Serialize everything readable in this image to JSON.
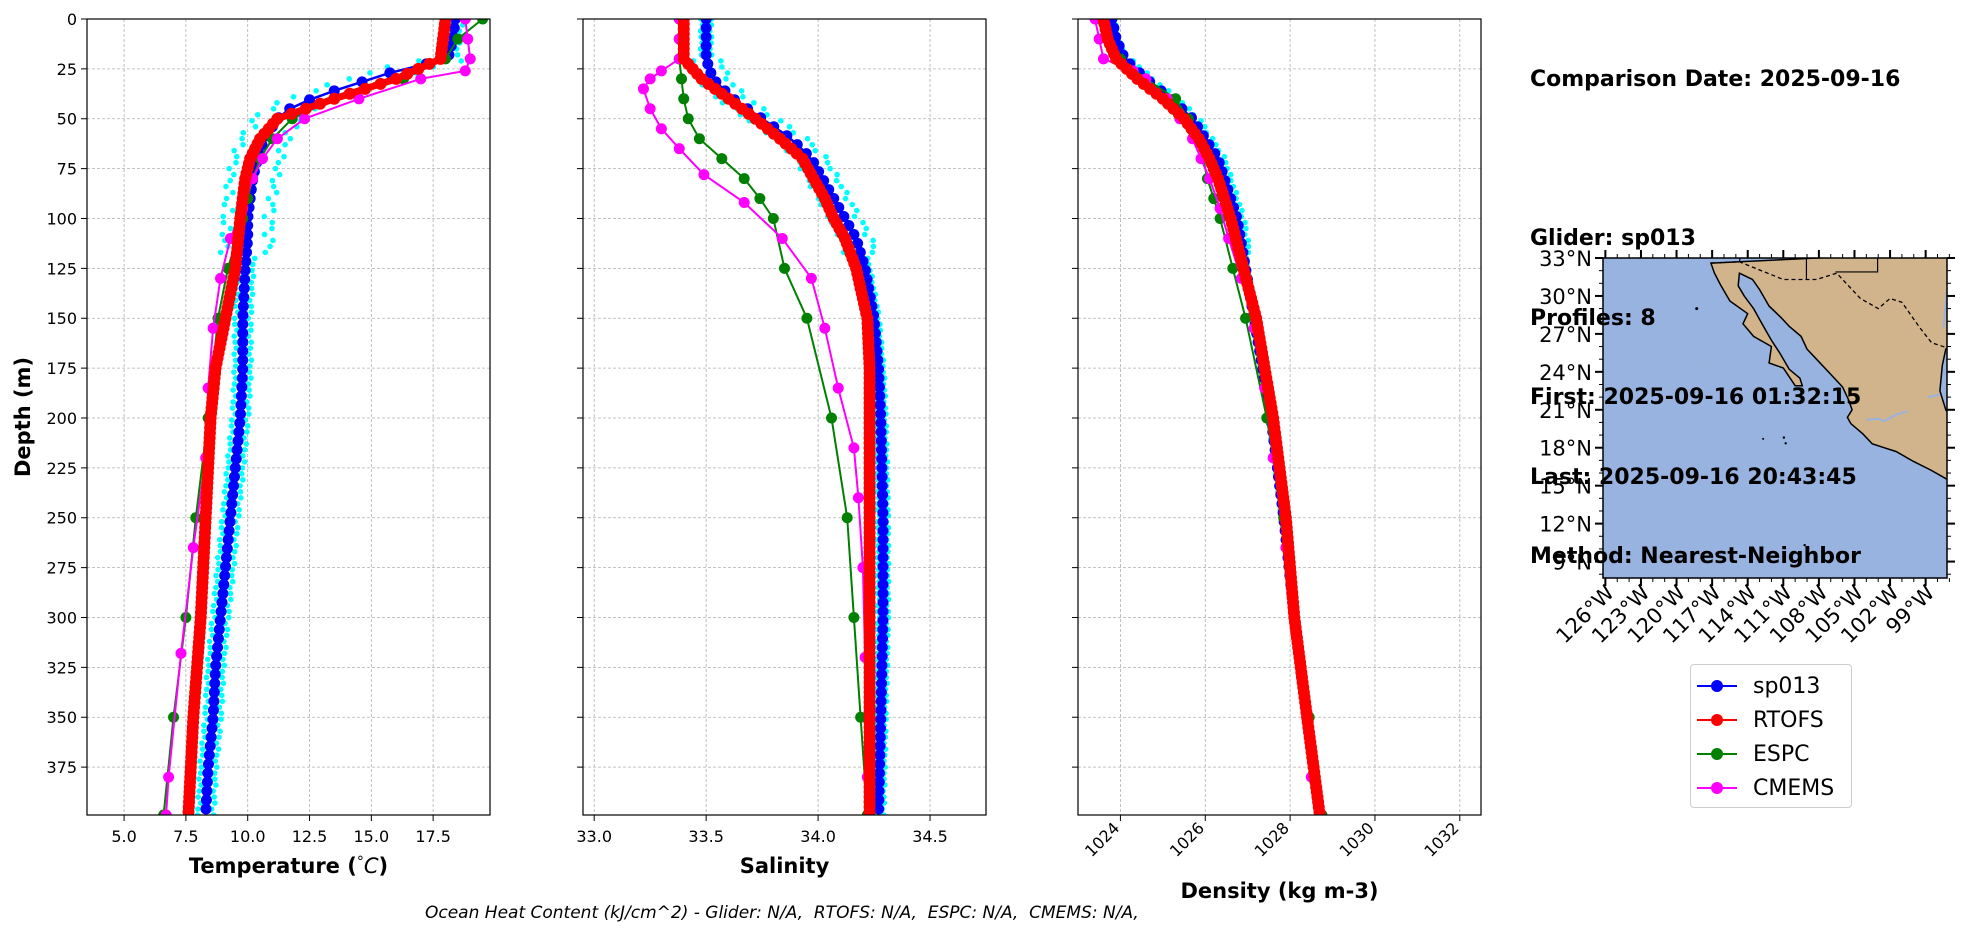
{
  "info": {
    "date_line": "Comparison Date: 2025-09-16",
    "glider_line": "Glider: sp013",
    "profiles_line": "Profiles: 8",
    "first_line": "First: 2025-09-16 01:32:15",
    "last_line": "Last: 2025-09-16 20:43:45",
    "method_line": "Method: Nearest-Neighbor"
  },
  "footer": {
    "ohc_line": "Ocean Heat Content (kJ/cm^2) - Glider: N/A,  RTOFS: N/A,  ESPC: N/A,  CMEMS: N/A,"
  },
  "colors": {
    "glider": "#0000ff",
    "glider_scatter": "#00ffff",
    "rtofs": "#ff0000",
    "espc": "#008000",
    "cmems": "#ff00ff",
    "ocean": "#99b3e0",
    "land": "#d2b48c",
    "grid": "#b0b0b0"
  },
  "legend": [
    {
      "label": "sp013",
      "color": "#0000ff"
    },
    {
      "label": "RTOFS",
      "color": "#ff0000"
    },
    {
      "label": "ESPC",
      "color": "#008000"
    },
    {
      "label": "CMEMS",
      "color": "#ff00ff"
    }
  ],
  "chart_data": [
    {
      "type": "line",
      "xlabel": "Temperature (°C)",
      "ylabel": "Depth (m)",
      "xlim": [
        3.5,
        19.8
      ],
      "ylim": [
        399,
        0
      ],
      "xticks": [
        "5.0",
        "7.5",
        "10.0",
        "12.5",
        "15.0",
        "17.5"
      ],
      "yticks": [
        "0",
        "25",
        "50",
        "75",
        "100",
        "125",
        "150",
        "175",
        "200",
        "225",
        "250",
        "275",
        "300",
        "325",
        "350",
        "375"
      ],
      "grid": true,
      "series": [
        {
          "name": "sp013",
          "depth": [
            0,
            10,
            20,
            26,
            32,
            38,
            44,
            50,
            56,
            62,
            70,
            80,
            90,
            100,
            110,
            125,
            150,
            175,
            200,
            225,
            250,
            275,
            300,
            325,
            350,
            375,
            399
          ],
          "values": [
            18.4,
            18.3,
            18.1,
            16.0,
            14.5,
            13.0,
            11.8,
            11.2,
            10.9,
            10.6,
            10.4,
            10.2,
            10.1,
            10.0,
            10.0,
            9.9,
            9.8,
            9.8,
            9.7,
            9.5,
            9.3,
            9.1,
            8.9,
            8.7,
            8.6,
            8.4,
            8.3
          ]
        },
        {
          "name": "RTOFS",
          "depth": [
            0,
            10,
            20,
            30,
            40,
            50,
            60,
            70,
            80,
            90,
            100,
            125,
            150,
            175,
            200,
            250,
            300,
            350,
            399
          ],
          "values": [
            18.0,
            17.9,
            17.8,
            16.0,
            13.5,
            11.2,
            10.5,
            10.1,
            9.9,
            9.8,
            9.7,
            9.5,
            9.1,
            8.7,
            8.5,
            8.3,
            8.1,
            7.8,
            7.6
          ]
        },
        {
          "name": "ESPC",
          "depth": [
            0,
            10,
            20,
            30,
            40,
            50,
            60,
            70,
            80,
            90,
            100,
            125,
            150,
            200,
            250,
            300,
            350,
            399
          ],
          "values": [
            19.5,
            18.5,
            18.0,
            16.3,
            13.5,
            11.8,
            11.0,
            10.5,
            10.2,
            10.0,
            9.8,
            9.2,
            8.8,
            8.4,
            7.9,
            7.5,
            7.0,
            6.6
          ]
        },
        {
          "name": "CMEMS",
          "depth": [
            0,
            10,
            20,
            26,
            30,
            40,
            50,
            60,
            70,
            80,
            95,
            110,
            130,
            155,
            185,
            220,
            265,
            318,
            380,
            399
          ],
          "values": [
            18.8,
            18.9,
            19.0,
            18.8,
            17.0,
            14.5,
            12.3,
            11.2,
            10.6,
            10.2,
            9.8,
            9.3,
            8.9,
            8.6,
            8.4,
            8.3,
            7.8,
            7.3,
            6.8,
            6.7
          ]
        }
      ]
    },
    {
      "type": "line",
      "xlabel": "Salinity",
      "xlim": [
        32.95,
        34.75
      ],
      "ylim": [
        399,
        0
      ],
      "xticks": [
        "33.0",
        "33.5",
        "34.0",
        "34.5"
      ],
      "grid": true,
      "series": [
        {
          "name": "sp013",
          "depth": [
            0,
            10,
            20,
            30,
            40,
            50,
            60,
            70,
            80,
            90,
            100,
            110,
            125,
            150,
            175,
            200,
            250,
            300,
            350,
            399
          ],
          "values": [
            33.5,
            33.5,
            33.5,
            33.53,
            33.62,
            33.75,
            33.88,
            33.97,
            34.02,
            34.07,
            34.12,
            34.17,
            34.21,
            34.25,
            34.27,
            34.28,
            34.29,
            34.29,
            34.28,
            34.27
          ]
        },
        {
          "name": "RTOFS",
          "depth": [
            0,
            10,
            20,
            30,
            40,
            50,
            60,
            70,
            80,
            90,
            100,
            110,
            125,
            150,
            175,
            200,
            250,
            300,
            350,
            399
          ],
          "values": [
            33.4,
            33.4,
            33.4,
            33.48,
            33.6,
            33.72,
            33.83,
            33.93,
            33.98,
            34.03,
            34.07,
            34.12,
            34.17,
            34.22,
            34.23,
            34.23,
            34.23,
            34.23,
            34.23,
            34.23
          ]
        },
        {
          "name": "ESPC",
          "depth": [
            0,
            10,
            20,
            30,
            40,
            50,
            60,
            70,
            80,
            90,
            100,
            125,
            150,
            200,
            250,
            300,
            350,
            399
          ],
          "values": [
            33.38,
            33.38,
            33.38,
            33.39,
            33.4,
            33.42,
            33.47,
            33.57,
            33.67,
            33.74,
            33.8,
            33.85,
            33.95,
            34.06,
            34.13,
            34.16,
            34.19,
            34.22
          ]
        },
        {
          "name": "CMEMS",
          "depth": [
            0,
            10,
            20,
            26,
            30,
            35,
            45,
            55,
            65,
            78,
            92,
            110,
            130,
            155,
            185,
            215,
            240,
            275,
            320,
            380,
            399
          ],
          "values": [
            33.38,
            33.38,
            33.38,
            33.3,
            33.25,
            33.22,
            33.25,
            33.3,
            33.38,
            33.49,
            33.67,
            33.84,
            33.97,
            34.03,
            34.09,
            34.16,
            34.18,
            34.2,
            34.21,
            34.22,
            34.23
          ]
        }
      ]
    },
    {
      "type": "line",
      "xlabel": "Density (kg m-3)",
      "xlim": [
        1023.0,
        1032.5
      ],
      "ylim": [
        399,
        0
      ],
      "xticks": [
        "1024",
        "1026",
        "1028",
        "1030",
        "1032"
      ],
      "grid": true,
      "series": [
        {
          "name": "sp013",
          "depth": [
            0,
            10,
            20,
            30,
            40,
            50,
            60,
            70,
            80,
            90,
            100,
            125,
            150,
            175,
            200,
            250,
            300,
            350,
            399
          ],
          "values": [
            1023.8,
            1023.9,
            1024.1,
            1024.6,
            1025.2,
            1025.7,
            1026.0,
            1026.3,
            1026.45,
            1026.6,
            1026.75,
            1026.95,
            1027.15,
            1027.35,
            1027.55,
            1027.85,
            1028.1,
            1028.4,
            1028.7
          ]
        },
        {
          "name": "RTOFS",
          "depth": [
            0,
            10,
            20,
            30,
            40,
            50,
            60,
            70,
            80,
            90,
            100,
            125,
            150,
            175,
            200,
            250,
            300,
            350,
            399
          ],
          "values": [
            1023.6,
            1023.7,
            1023.9,
            1024.4,
            1025.0,
            1025.5,
            1025.85,
            1026.1,
            1026.3,
            1026.45,
            1026.6,
            1026.9,
            1027.2,
            1027.4,
            1027.6,
            1027.9,
            1028.1,
            1028.4,
            1028.7
          ]
        },
        {
          "name": "ESPC",
          "depth": [
            0,
            10,
            20,
            30,
            40,
            50,
            60,
            70,
            80,
            90,
            100,
            125,
            150,
            200,
            250,
            300,
            350,
            399
          ],
          "values": [
            1023.5,
            1023.7,
            1024.0,
            1024.6,
            1025.3,
            1025.6,
            1025.8,
            1025.95,
            1026.05,
            1026.2,
            1026.35,
            1026.65,
            1026.95,
            1027.45,
            1027.85,
            1028.1,
            1028.45,
            1028.75
          ]
        },
        {
          "name": "CMEMS",
          "depth": [
            0,
            10,
            20,
            26,
            30,
            40,
            50,
            60,
            70,
            80,
            95,
            110,
            130,
            155,
            185,
            220,
            265,
            318,
            380,
            399
          ],
          "values": [
            1023.4,
            1023.5,
            1023.6,
            1024.3,
            1024.6,
            1025.1,
            1025.4,
            1025.7,
            1025.9,
            1026.1,
            1026.35,
            1026.55,
            1026.85,
            1027.15,
            1027.4,
            1027.6,
            1027.9,
            1028.2,
            1028.5,
            1028.7
          ]
        }
      ]
    }
  ],
  "map": {
    "lat_ticks": [
      "33°N",
      "30°N",
      "27°N",
      "24°N",
      "21°N",
      "18°N",
      "15°N",
      "12°N",
      "9°N"
    ],
    "lon_ticks": [
      "126°W",
      "123°W",
      "120°W",
      "117°W",
      "114°W",
      "111°W",
      "108°W",
      "105°W",
      "102°W",
      "99°W"
    ],
    "lat_values": [
      33,
      30,
      27,
      24,
      21,
      18,
      15,
      12,
      9
    ],
    "lon_values": [
      -126,
      -123,
      -120,
      -117,
      -114,
      -111,
      -108,
      -105,
      -102,
      -99
    ],
    "extent": {
      "lon_min": -126.2,
      "lon_max": -97.2,
      "lat_min": 7.7,
      "lat_max": 33.0
    }
  }
}
